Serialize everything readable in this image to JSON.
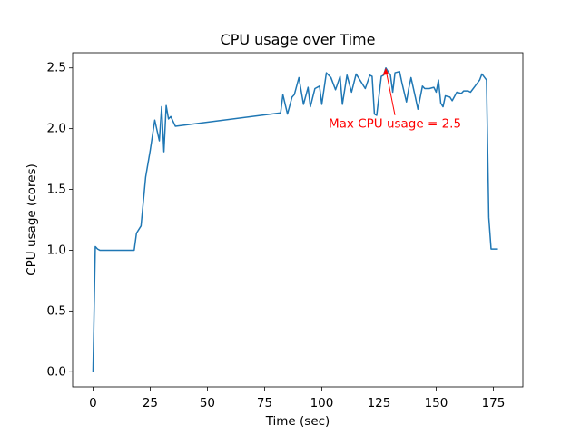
{
  "chart_data": {
    "type": "line",
    "title": "CPU usage over Time",
    "xlabel": "Time (sec)",
    "ylabel": "CPU usage (cores)",
    "x": [
      0,
      1,
      2,
      3,
      5,
      7,
      9,
      11,
      13,
      15,
      18,
      19,
      21,
      22,
      23,
      25,
      27,
      29,
      30,
      31,
      32,
      33,
      34,
      36,
      82,
      83,
      85,
      87,
      88,
      90,
      92,
      94,
      95,
      97,
      99,
      100,
      102,
      104,
      106,
      108,
      109,
      111,
      113,
      115,
      117,
      119,
      121,
      122,
      123,
      124,
      126,
      127,
      128,
      130,
      131,
      132,
      134,
      135,
      137,
      138,
      139,
      141,
      142,
      144,
      145,
      147,
      149,
      150,
      151,
      152,
      153,
      154,
      156,
      157,
      159,
      161,
      162,
      164,
      165,
      167,
      169,
      170,
      172,
      173,
      174,
      177
    ],
    "series": [
      {
        "name": "CPU usage",
        "color": "#1f77b4",
        "values": [
          0,
          1.03,
          1.01,
          1.0,
          1.0,
          1.0,
          1.0,
          1.0,
          1.0,
          1.0,
          1.0,
          1.14,
          1.2,
          1.4,
          1.6,
          1.82,
          2.07,
          1.9,
          2.18,
          1.81,
          2.19,
          2.08,
          2.1,
          2.02,
          2.13,
          2.28,
          2.12,
          2.26,
          2.28,
          2.42,
          2.2,
          2.34,
          2.18,
          2.33,
          2.35,
          2.2,
          2.46,
          2.42,
          2.32,
          2.43,
          2.2,
          2.44,
          2.3,
          2.45,
          2.39,
          2.33,
          2.44,
          2.43,
          2.12,
          2.11,
          2.43,
          2.44,
          2.5,
          2.44,
          2.3,
          2.46,
          2.47,
          2.38,
          2.22,
          2.33,
          2.42,
          2.25,
          2.16,
          2.35,
          2.33,
          2.33,
          2.34,
          2.3,
          2.4,
          2.21,
          2.18,
          2.27,
          2.26,
          2.23,
          2.3,
          2.29,
          2.31,
          2.31,
          2.3,
          2.35,
          2.4,
          2.45,
          2.4,
          1.27,
          1.01,
          1.01
        ]
      }
    ],
    "xlim": [
      -8.9,
      187.9
    ],
    "ylim": [
      -0.125,
      2.625
    ],
    "xticks": [
      0,
      25,
      50,
      75,
      100,
      125,
      150,
      175
    ],
    "yticks": [
      {
        "value": 0,
        "label": "0.0"
      },
      {
        "value": 0.5,
        "label": "0.5"
      },
      {
        "value": 1,
        "label": "1.0"
      },
      {
        "value": 1.5,
        "label": "1.5"
      },
      {
        "value": 2,
        "label": "2.0"
      },
      {
        "value": 2.5,
        "label": "2.5"
      }
    ],
    "annotation": {
      "text": "Max CPU usage = 2.5",
      "x": 128,
      "y": 2.5,
      "color": "#ff0000"
    }
  }
}
